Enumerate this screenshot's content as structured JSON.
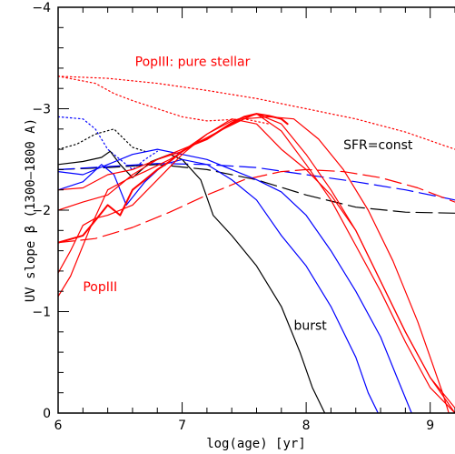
{
  "chart_data": {
    "type": "line",
    "xlabel": "log(age) [yr]",
    "ylabel": "UV slope β (1300–1800 A)",
    "xlim": [
      6,
      9.2
    ],
    "ylim": [
      0,
      -4
    ],
    "xticks": [
      "6",
      "7",
      "8",
      "9"
    ],
    "yticks": [
      "0",
      "−1",
      "−2",
      "−3",
      "−4"
    ],
    "annotations": [
      {
        "text": "PopIII: pure stellar",
        "color": "#ff0000",
        "x": 6.62,
        "y": -3.42
      },
      {
        "text": "SFR=const",
        "color": "#000000",
        "x": 8.3,
        "y": -2.6
      },
      {
        "text": "PopIII",
        "color": "#ff0000",
        "x": 6.2,
        "y": -1.2
      },
      {
        "text": "burst",
        "color": "#000000",
        "x": 7.9,
        "y": -0.82
      }
    ],
    "colors": {
      "red": "#ff0000",
      "blue": "#0000ff",
      "black": "#000000"
    },
    "series": [
      {
        "color": "#ff0000",
        "dash": "dot",
        "x": [
          6.0,
          6.4,
          6.8,
          7.2,
          7.6,
          8.0,
          8.4,
          8.8,
          9.2
        ],
        "values": [
          -3.32,
          -3.3,
          -3.25,
          -3.18,
          -3.1,
          -3.0,
          -2.9,
          -2.77,
          -2.6
        ]
      },
      {
        "color": "#ff0000",
        "dash": "dot",
        "x": [
          6.0,
          6.3,
          6.45,
          6.6,
          6.8,
          7.0,
          7.2,
          7.5,
          7.7
        ],
        "values": [
          -3.32,
          -3.25,
          -3.15,
          -3.08,
          -3.0,
          -2.92,
          -2.88,
          -2.9,
          -2.85
        ]
      },
      {
        "color": "#0000ff",
        "dash": "dot",
        "x": [
          6.0,
          6.2,
          6.3,
          6.4,
          6.5,
          6.6,
          6.7,
          6.8
        ],
        "values": [
          -2.92,
          -2.9,
          -2.8,
          -2.6,
          -2.5,
          -2.4,
          -2.5,
          -2.58
        ]
      },
      {
        "color": "#000000",
        "dash": "dot",
        "x": [
          6.0,
          6.15,
          6.3,
          6.45,
          6.6,
          6.7
        ],
        "values": [
          -2.6,
          -2.65,
          -2.75,
          -2.8,
          -2.62,
          -2.58
        ]
      },
      {
        "color": "#000000",
        "dash": "long-dash",
        "x": [
          6.0,
          6.4,
          6.8,
          7.2,
          7.6,
          8.0,
          8.4,
          8.8,
          9.2
        ],
        "values": [
          -2.4,
          -2.42,
          -2.45,
          -2.4,
          -2.3,
          -2.15,
          -2.03,
          -1.98,
          -1.97
        ]
      },
      {
        "color": "#0000ff",
        "dash": "long-dash",
        "x": [
          6.0,
          6.4,
          6.8,
          7.2,
          7.6,
          8.0,
          8.4,
          8.8,
          9.2
        ],
        "values": [
          -2.4,
          -2.43,
          -2.46,
          -2.45,
          -2.42,
          -2.35,
          -2.28,
          -2.2,
          -2.1
        ]
      },
      {
        "color": "#ff0000",
        "dash": "long-dash",
        "x": [
          6.0,
          6.3,
          6.6,
          6.9,
          7.2,
          7.5,
          7.8,
          8.0,
          8.3,
          8.6,
          8.9,
          9.2
        ],
        "values": [
          -1.68,
          -1.72,
          -1.83,
          -1.98,
          -2.15,
          -2.3,
          -2.38,
          -2.4,
          -2.38,
          -2.32,
          -2.22,
          -2.08
        ]
      },
      {
        "color": "#000000",
        "dash": "solid",
        "x": [
          6.0,
          6.2,
          6.35,
          6.42,
          6.5,
          6.6,
          6.75,
          6.9,
          7.0,
          7.15,
          7.25,
          7.4,
          7.6,
          7.8,
          7.95,
          8.05,
          8.15
        ],
        "values": [
          -2.45,
          -2.48,
          -2.52,
          -2.58,
          -2.45,
          -2.32,
          -2.48,
          -2.55,
          -2.5,
          -2.3,
          -1.95,
          -1.75,
          -1.45,
          -1.05,
          -0.6,
          -0.25,
          0.0
        ]
      },
      {
        "color": "#0000ff",
        "dash": "solid",
        "x": [
          6.0,
          6.2,
          6.35,
          6.45,
          6.55,
          6.7,
          6.85,
          7.0,
          7.2,
          7.4,
          7.6,
          7.8,
          8.0,
          8.2,
          8.4,
          8.5,
          8.58
        ],
        "values": [
          -2.2,
          -2.28,
          -2.45,
          -2.35,
          -2.05,
          -2.28,
          -2.45,
          -2.5,
          -2.45,
          -2.3,
          -2.1,
          -1.75,
          -1.45,
          -1.05,
          -0.55,
          -0.2,
          0.0
        ]
      },
      {
        "color": "#0000ff",
        "dash": "solid",
        "x": [
          6.0,
          6.2,
          6.4,
          6.6,
          6.8,
          7.0,
          7.2,
          7.4,
          7.6,
          7.8,
          8.0,
          8.2,
          8.4,
          8.6,
          8.75,
          8.85
        ],
        "values": [
          -2.38,
          -2.35,
          -2.45,
          -2.55,
          -2.6,
          -2.55,
          -2.5,
          -2.4,
          -2.3,
          -2.18,
          -1.95,
          -1.6,
          -1.2,
          -0.75,
          -0.3,
          0.0
        ]
      },
      {
        "color": "#ff0000",
        "dash": "solid",
        "x": [
          6.0,
          6.1,
          6.25,
          6.4,
          6.55,
          6.7,
          6.9,
          7.1,
          7.3,
          7.5,
          7.7,
          7.9,
          8.1,
          8.3,
          8.5,
          8.7,
          8.9,
          9.0,
          9.1,
          9.15
        ],
        "values": [
          -1.15,
          -1.35,
          -1.8,
          -2.2,
          -2.3,
          -2.38,
          -2.5,
          -2.65,
          -2.78,
          -2.9,
          -2.92,
          -2.9,
          -2.7,
          -2.4,
          -2.0,
          -1.5,
          -0.9,
          -0.55,
          -0.2,
          0.0
        ]
      },
      {
        "color": "#ff0000",
        "dash": "solid",
        "x": [
          6.0,
          6.1,
          6.2,
          6.3,
          6.4,
          6.6,
          6.8,
          7.0,
          7.2,
          7.4,
          7.6,
          7.8,
          8.0,
          8.2,
          8.4,
          8.6,
          8.8,
          9.0,
          9.2
        ],
        "values": [
          -1.38,
          -1.6,
          -1.85,
          -1.92,
          -1.95,
          -2.05,
          -2.3,
          -2.55,
          -2.75,
          -2.9,
          -2.85,
          -2.6,
          -2.4,
          -2.15,
          -1.8,
          -1.3,
          -0.8,
          -0.35,
          0.0
        ]
      },
      {
        "color": "#ff0000",
        "dash": "solid",
        "x": [
          6.0,
          6.2,
          6.4,
          6.6,
          6.8,
          7.0,
          7.2,
          7.4,
          7.6,
          7.8,
          8.0,
          8.2,
          8.4,
          8.6,
          8.8,
          9.0,
          9.2
        ],
        "values": [
          -2.0,
          -2.08,
          -2.15,
          -2.35,
          -2.5,
          -2.6,
          -2.7,
          -2.85,
          -2.95,
          -2.85,
          -2.55,
          -2.2,
          -1.8,
          -1.3,
          -0.8,
          -0.35,
          -0.05
        ]
      },
      {
        "color": "#ff0000",
        "dash": "solid",
        "x": [
          6.0,
          6.2,
          6.4,
          6.6,
          6.8,
          7.0,
          7.2,
          7.4,
          7.6,
          7.8,
          8.0,
          8.2,
          8.4,
          8.6,
          8.8,
          9.0,
          9.2
        ],
        "values": [
          -2.2,
          -2.22,
          -2.35,
          -2.4,
          -2.5,
          -2.58,
          -2.75,
          -2.88,
          -2.95,
          -2.78,
          -2.45,
          -2.1,
          -1.65,
          -1.2,
          -0.7,
          -0.25,
          0.0
        ]
      },
      {
        "color": "#ff0000",
        "dash": "solid",
        "width": 2,
        "x": [
          6.0,
          6.2,
          6.3,
          6.4,
          6.5,
          6.6,
          6.7,
          6.8,
          6.9,
          7.0,
          7.1,
          7.2,
          7.3,
          7.4,
          7.5,
          7.6,
          7.7,
          7.8,
          7.85
        ],
        "values": [
          -1.68,
          -1.75,
          -1.9,
          -2.05,
          -1.95,
          -2.2,
          -2.3,
          -2.4,
          -2.48,
          -2.58,
          -2.65,
          -2.7,
          -2.78,
          -2.86,
          -2.92,
          -2.95,
          -2.93,
          -2.9,
          -2.85
        ]
      }
    ]
  }
}
